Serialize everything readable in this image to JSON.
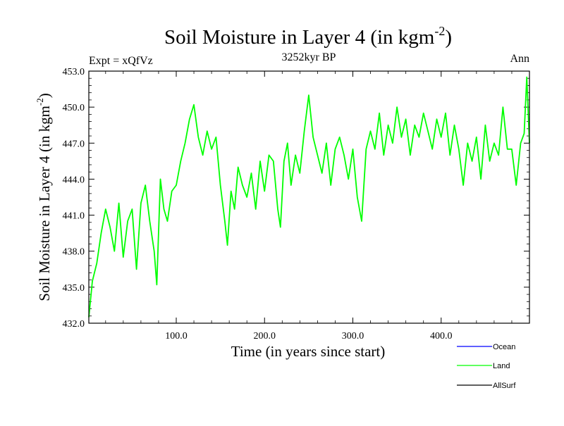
{
  "header": {
    "title_main": "Soil Moisture in Layer 4 (in kgm",
    "title_sup": "-2",
    "title_close": ")",
    "expt": "Expt = xQfVz",
    "period": "3252kyr BP",
    "season": "Ann"
  },
  "colors": {
    "land": "#00ff00",
    "ocean": "#0000ff",
    "allsurf": "#000000"
  },
  "chart_data": {
    "type": "line",
    "title": "Soil Moisture in Layer 4 (in kgm-2)",
    "xlabel": "Time (in years since start)",
    "ylabel": "Soil Moisture in Layer 4 (in kgm-2)",
    "ylabel_main": "Soil Moisture in Layer 4 (in kgm",
    "ylabel_sup": "-2",
    "ylabel_close": ")",
    "xlim": [
      1,
      500
    ],
    "ylim": [
      432.0,
      453.0
    ],
    "x_ticks": [
      100,
      200,
      300,
      400
    ],
    "x_tick_labels": [
      "100.0",
      "200.0",
      "300.0",
      "400.0"
    ],
    "y_ticks": [
      432,
      435,
      438,
      441,
      444,
      447,
      450,
      453
    ],
    "y_tick_labels": [
      "432.0",
      "435.0",
      "438.0",
      "441.0",
      "444.0",
      "447.0",
      "450.0",
      "453.0"
    ],
    "legend": [
      "Ocean",
      "Land",
      "AllSurf"
    ],
    "series": [
      {
        "name": "Land",
        "x": [
          1,
          5,
          10,
          15,
          20,
          25,
          30,
          35,
          40,
          45,
          50,
          55,
          60,
          65,
          70,
          75,
          78,
          82,
          86,
          90,
          95,
          100,
          105,
          110,
          115,
          120,
          125,
          130,
          135,
          140,
          145,
          150,
          155,
          158,
          162,
          166,
          170,
          175,
          180,
          185,
          190,
          195,
          200,
          205,
          210,
          215,
          218,
          222,
          226,
          230,
          235,
          240,
          245,
          250,
          255,
          260,
          265,
          270,
          275,
          280,
          285,
          290,
          295,
          300,
          305,
          310,
          315,
          320,
          325,
          330,
          335,
          340,
          345,
          350,
          355,
          360,
          365,
          370,
          375,
          380,
          385,
          390,
          395,
          400,
          405,
          410,
          415,
          420,
          425,
          430,
          435,
          440,
          445,
          450,
          455,
          460,
          465,
          470,
          475,
          480,
          485,
          490,
          494,
          497,
          500
        ],
        "values": [
          432.5,
          435.5,
          437.0,
          439.5,
          441.5,
          440.0,
          438.0,
          442.0,
          437.5,
          440.5,
          441.5,
          436.5,
          442.0,
          443.5,
          440.5,
          438.0,
          435.2,
          444.0,
          441.5,
          440.5,
          443.0,
          443.5,
          445.5,
          447.0,
          449.0,
          450.2,
          447.5,
          446.0,
          448.0,
          446.5,
          447.5,
          443.5,
          440.5,
          438.5,
          443.0,
          441.5,
          445.0,
          443.5,
          442.5,
          444.5,
          441.5,
          445.5,
          443.0,
          446.0,
          445.5,
          441.5,
          440.0,
          445.5,
          447.0,
          443.5,
          446.0,
          444.5,
          448.0,
          451.0,
          447.5,
          446.0,
          444.5,
          447.0,
          443.5,
          446.5,
          447.5,
          446.0,
          444.0,
          446.5,
          442.5,
          440.5,
          446.5,
          448.0,
          446.5,
          449.5,
          446.0,
          448.5,
          447.0,
          450.0,
          447.5,
          449.0,
          446.0,
          448.5,
          447.5,
          449.5,
          448.0,
          446.5,
          449.0,
          447.5,
          449.5,
          446.0,
          448.5,
          446.5,
          443.5,
          447.0,
          445.5,
          447.5,
          444.0,
          448.5,
          445.5,
          447.0,
          446.0,
          450.0,
          446.5,
          446.5,
          443.5,
          447.0,
          447.8,
          452.5,
          447.0
        ]
      }
    ]
  }
}
